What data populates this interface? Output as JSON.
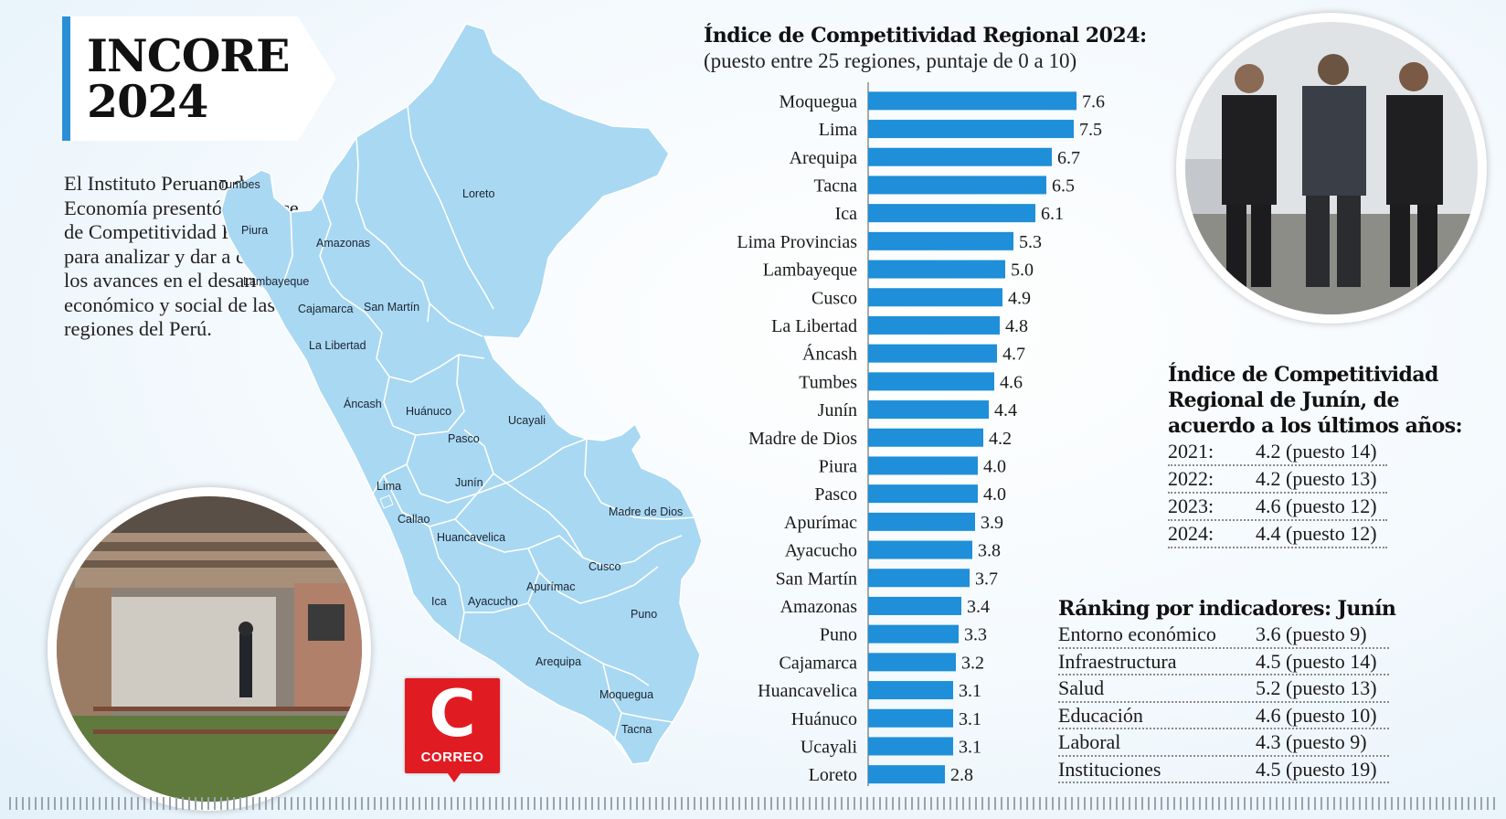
{
  "header": {
    "title_line1": "INCORE",
    "title_line2": "2024"
  },
  "intro_text": "El Instituto Peruano de Economía presentó el Índice de Competitividad Regional para analizar y dar a conocer los avances en el desarrollo económico y social de las regiones del Perú.",
  "colors": {
    "accent": "#2b8fd6",
    "bar": "#1e8fd8",
    "map_fill": "#a9d8f2",
    "logo": "#e11b22"
  },
  "map": {
    "regions": [
      "Tumbes",
      "Piura",
      "Lambayeque",
      "Cajamarca",
      "Amazonas",
      "Loreto",
      "San Martín",
      "La Libertad",
      "Áncash",
      "Huánuco",
      "Pasco",
      "Ucayali",
      "Lima",
      "Callao",
      "Junín",
      "Huancavelica",
      "Ica",
      "Ayacucho",
      "Apurímac",
      "Cusco",
      "Madre de Dios",
      "Puno",
      "Arequipa",
      "Moquegua",
      "Tacna"
    ]
  },
  "chart_data": {
    "type": "bar",
    "orientation": "horizontal",
    "title": "Índice de Competitividad Regional 2024:",
    "subtitle": "(puesto entre 25 regiones, puntaje de 0 a 10)",
    "categories": [
      "Moquegua",
      "Lima",
      "Arequipa",
      "Tacna",
      "Ica",
      "Lima Provincias",
      "Lambayeque",
      "Cusco",
      "La Libertad",
      "Áncash",
      "Tumbes",
      "Junín",
      "Madre de Dios",
      "Piura",
      "Pasco",
      "Apurímac",
      "Ayacucho",
      "San Martín",
      "Amazonas",
      "Puno",
      "Cajamarca",
      "Huancavelica",
      "Huánuco",
      "Ucayali",
      "Loreto"
    ],
    "values": [
      7.6,
      7.5,
      6.7,
      6.5,
      6.1,
      5.3,
      5.0,
      4.9,
      4.8,
      4.7,
      4.6,
      4.4,
      4.2,
      4.0,
      4.0,
      3.9,
      3.8,
      3.7,
      3.4,
      3.3,
      3.2,
      3.1,
      3.1,
      3.1,
      2.8
    ],
    "value_labels": [
      "7.6",
      "7.5",
      "6.7",
      "6.5",
      "6.1",
      "5.3",
      "5.0",
      "4.9",
      "4.8",
      "4.7",
      "4.6",
      "4.4",
      "4.2",
      "4.0",
      "4.0",
      "3.9",
      "3.8",
      "3.7",
      "3.4",
      "3.3",
      "3.2",
      "3.1",
      "3.1",
      "3.1",
      "2.8"
    ],
    "xlim": [
      0,
      10
    ],
    "xlabel": "",
    "ylabel": ""
  },
  "junin_history": {
    "title": "Índice de Competitividad Regional de Junín, de acuerdo a los últimos años:",
    "rows": [
      {
        "year": "2021:",
        "value": "4.2 (puesto 14)"
      },
      {
        "year": "2022:",
        "value": "4.2 (puesto 13)"
      },
      {
        "year": "2023:",
        "value": "4.6 (puesto 12)"
      },
      {
        "year": "2024:",
        "value": "4.4 (puesto 12)"
      }
    ]
  },
  "ranking": {
    "title": "Ránking por indicadores:  Junín",
    "rows": [
      {
        "name": "Entorno económico",
        "value": "3.6 (puesto 9)"
      },
      {
        "name": "Infraestructura",
        "value": "4.5 (puesto 14)"
      },
      {
        "name": "Salud",
        "value": "5.2 (puesto 13)"
      },
      {
        "name": "Educación",
        "value": "4.6 (puesto 10)"
      },
      {
        "name": "Laboral",
        "value": "4.3 (puesto 9)"
      },
      {
        "name": "Instituciones",
        "value": "4.5 (puesto 19)"
      }
    ]
  },
  "logo": {
    "letter": "C",
    "text": "CORREO"
  }
}
